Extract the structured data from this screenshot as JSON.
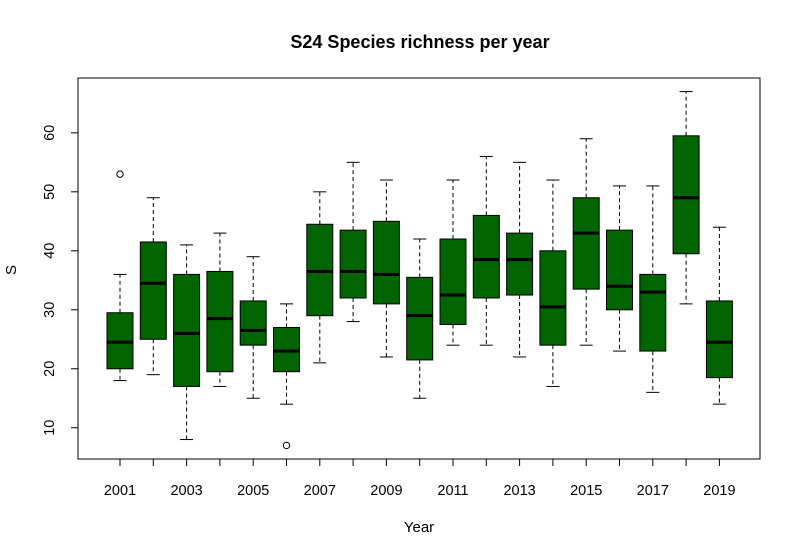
{
  "chart_data": {
    "type": "boxplot",
    "title": "S24 Species richness per year",
    "xlabel": "Year",
    "ylabel": "S",
    "ylim": [
      4.7,
      69.3
    ],
    "yticks": [
      10,
      20,
      30,
      40,
      50,
      60
    ],
    "xtick_labels_shown": [
      "2001",
      "2003",
      "2005",
      "2007",
      "2009",
      "2011",
      "2013",
      "2015",
      "2017",
      "2019"
    ],
    "box_color": "#006400",
    "grid": false,
    "categories": [
      "2001",
      "2002",
      "2003",
      "2004",
      "2005",
      "2006",
      "2007",
      "2008",
      "2009",
      "2010",
      "2011",
      "2012",
      "2013",
      "2014",
      "2015",
      "2016",
      "2017",
      "2018",
      "2019"
    ],
    "boxes": [
      {
        "year": "2001",
        "min": 18,
        "q1": 20,
        "median": 24.5,
        "q3": 29.5,
        "max": 36,
        "outliers": [
          53
        ]
      },
      {
        "year": "2002",
        "min": 19,
        "q1": 25,
        "median": 34.5,
        "q3": 41.5,
        "max": 49,
        "outliers": []
      },
      {
        "year": "2003",
        "min": 8,
        "q1": 17,
        "median": 26,
        "q3": 36,
        "max": 41,
        "outliers": []
      },
      {
        "year": "2004",
        "min": 17,
        "q1": 19.5,
        "median": 28.5,
        "q3": 36.5,
        "max": 43,
        "outliers": []
      },
      {
        "year": "2005",
        "min": 15,
        "q1": 24,
        "median": 26.5,
        "q3": 31.5,
        "max": 39,
        "outliers": []
      },
      {
        "year": "2006",
        "min": 14,
        "q1": 19.5,
        "median": 23,
        "q3": 27,
        "max": 31,
        "outliers": [
          7
        ]
      },
      {
        "year": "2007",
        "min": 21,
        "q1": 29,
        "median": 36.5,
        "q3": 44.5,
        "max": 50,
        "outliers": []
      },
      {
        "year": "2008",
        "min": 28,
        "q1": 32,
        "median": 36.5,
        "q3": 43.5,
        "max": 55,
        "outliers": []
      },
      {
        "year": "2009",
        "min": 22,
        "q1": 31,
        "median": 36,
        "q3": 45,
        "max": 52,
        "outliers": []
      },
      {
        "year": "2010",
        "min": 15,
        "q1": 21.5,
        "median": 29,
        "q3": 35.5,
        "max": 42,
        "outliers": []
      },
      {
        "year": "2011",
        "min": 24,
        "q1": 27.5,
        "median": 32.5,
        "q3": 42,
        "max": 52,
        "outliers": []
      },
      {
        "year": "2012",
        "min": 24,
        "q1": 32,
        "median": 38.5,
        "q3": 46,
        "max": 56,
        "outliers": []
      },
      {
        "year": "2013",
        "min": 22,
        "q1": 32.5,
        "median": 38.5,
        "q3": 43,
        "max": 55,
        "outliers": []
      },
      {
        "year": "2014",
        "min": 17,
        "q1": 24,
        "median": 30.5,
        "q3": 40,
        "max": 52,
        "outliers": []
      },
      {
        "year": "2015",
        "min": 24,
        "q1": 33.5,
        "median": 43,
        "q3": 49,
        "max": 59,
        "outliers": []
      },
      {
        "year": "2016",
        "min": 23,
        "q1": 30,
        "median": 34,
        "q3": 43.5,
        "max": 51,
        "outliers": []
      },
      {
        "year": "2017",
        "min": 16,
        "q1": 23,
        "median": 33,
        "q3": 36,
        "max": 51,
        "outliers": []
      },
      {
        "year": "2018",
        "min": 31,
        "q1": 39.5,
        "median": 49,
        "q3": 59.5,
        "max": 67,
        "outliers": []
      },
      {
        "year": "2019",
        "min": 14,
        "q1": 18.5,
        "median": 24.5,
        "q3": 31.5,
        "max": 44,
        "outliers": []
      }
    ]
  }
}
